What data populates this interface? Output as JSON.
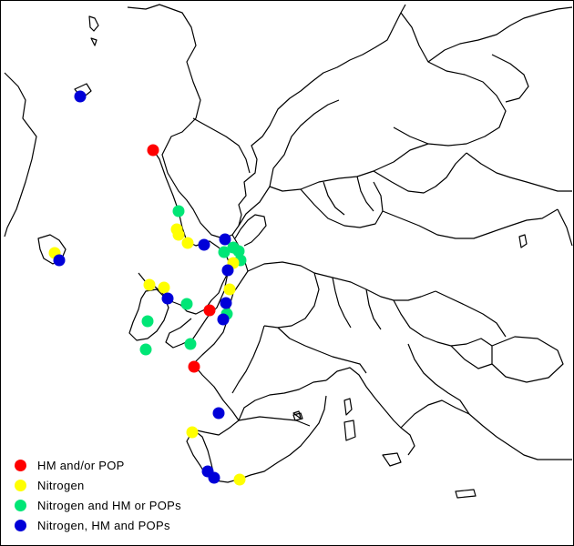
{
  "legend": [
    {
      "key": "hm_pop",
      "label": "HM and/or POP",
      "color": "#ff0000"
    },
    {
      "key": "nitrogen",
      "label": "Nitrogen",
      "color": "#ffff00"
    },
    {
      "key": "nitrogen_hm_or_pops",
      "label": "Nitrogen and HM or POPs",
      "color": "#00e676"
    },
    {
      "key": "nitrogen_hm_pops",
      "label": "Nitrogen, HM and POPs",
      "color": "#0000d8"
    }
  ],
  "colors": {
    "background": "#ffffff",
    "coastline": "#000000"
  }
}
